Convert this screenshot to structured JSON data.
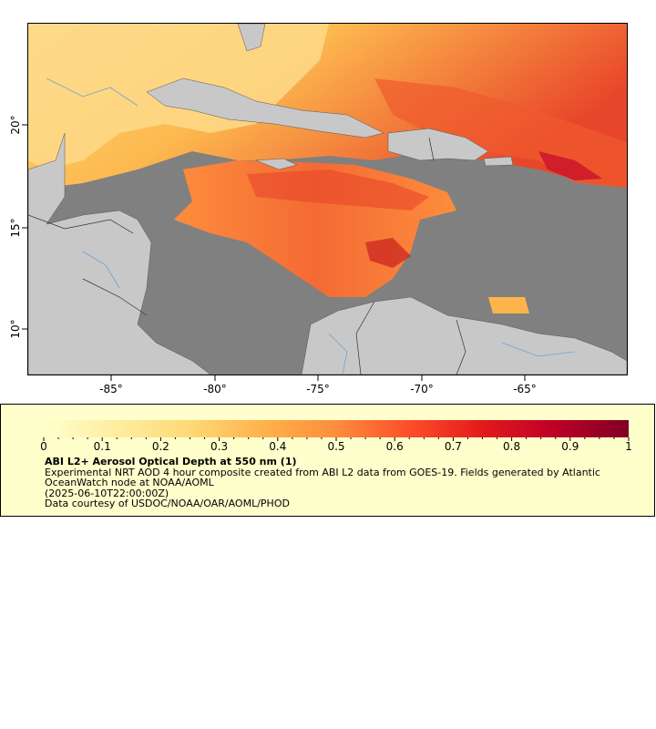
{
  "map": {
    "x_axis": {
      "ticks": [
        "-85°",
        "-80°",
        "-75°",
        "-70°",
        "-65°"
      ]
    },
    "y_axis": {
      "ticks": [
        "20°",
        "15°",
        "10°"
      ]
    },
    "colors": {
      "ocean": "#808080",
      "land": "#c8c8c8",
      "border": "#333333",
      "river": "#6fa3d6"
    }
  },
  "legend": {
    "title": "ABI L2+ Aerosol Optical Depth at 550 nm (1)",
    "description": "Experimental NRT AOD 4 hour composite created from ABI L2 data from GOES-19. Fields generated by Atlantic OceanWatch node at NOAA/AOML",
    "timestamp": "(2025-06-10T22:00:00Z)",
    "credit": "Data courtesy of USDOC/NOAA/OAR/AOML/PHOD",
    "colorbar": {
      "min": 0,
      "max": 1,
      "tick_labels": [
        "0",
        "0.1",
        "0.2",
        "0.3",
        "0.4",
        "0.5",
        "0.6",
        "0.7",
        "0.8",
        "0.9",
        "1"
      ],
      "colors": [
        "#ffffcc",
        "#ffeda0",
        "#fed976",
        "#feb24c",
        "#fd8d3c",
        "#fc4e2a",
        "#e31a1c",
        "#bd0026",
        "#800026"
      ]
    }
  }
}
